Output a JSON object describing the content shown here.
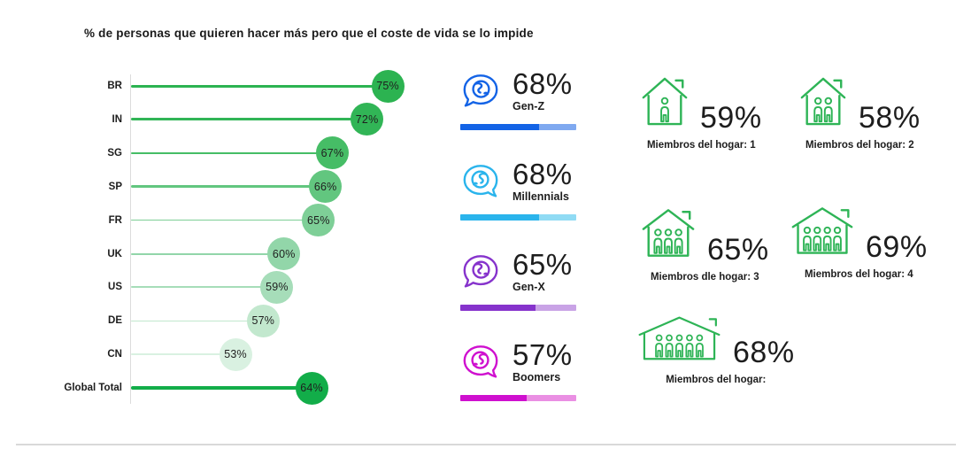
{
  "title": "% de personas que quieren hacer más pero que el coste de vida se lo impide",
  "chart_data": [
    {
      "type": "bar",
      "variant": "lollipop",
      "title": "% de personas que quieren hacer más pero que el coste de vida se lo impide",
      "categories": [
        "BR",
        "IN",
        "SG",
        "SP",
        "FR",
        "UK",
        "US",
        "DE",
        "CN",
        "Global Total"
      ],
      "values": [
        75,
        72,
        67,
        66,
        65,
        60,
        59,
        57,
        53,
        64
      ],
      "value_labels": [
        "75%",
        "72%",
        "67%",
        "66%",
        "65%",
        "60%",
        "59%",
        "57%",
        "53%",
        "64%"
      ],
      "unit": "%",
      "xlim": [
        38,
        79
      ],
      "grid": false,
      "colors": [
        "#2cb351",
        "#31b556",
        "#46bd66",
        "#62c67f",
        "#7ecf97",
        "#92d6a9",
        "#a6ddb9",
        "#c2e8ce",
        "#d9f1e1",
        "#12ad49"
      ],
      "line_widths": [
        3,
        3,
        1.5,
        2.5,
        1.5,
        2,
        2,
        1.5,
        2,
        4
      ]
    },
    {
      "type": "bar",
      "name": "generations",
      "categories": [
        "Gen-Z",
        "Millennials",
        "Gen-X",
        "Boomers"
      ],
      "values": [
        68,
        68,
        65,
        57
      ],
      "value_labels": [
        "68%",
        "68%",
        "65%",
        "57%"
      ],
      "unit": "%",
      "icon": "speech-bubble-globe",
      "colors": [
        "#1363e6",
        "#2ab4ec",
        "#8633cc",
        "#cf10cf"
      ],
      "track_colors": [
        "#7fa9f0",
        "#90dbf4",
        "#c9a3e6",
        "#ea8fe3"
      ]
    },
    {
      "type": "bar",
      "name": "household-members",
      "categories": [
        "Miembros del hogar: 1",
        "Miembros del hogar: 2",
        "Miembros dle hogar: 3",
        "Miembros del hogar: 4",
        "Miembros del hogar:"
      ],
      "persons": [
        1,
        2,
        3,
        4,
        5
      ],
      "values": [
        59,
        58,
        65,
        69,
        68
      ],
      "value_labels": [
        "59%",
        "58%",
        "65%",
        "69%",
        "68%"
      ],
      "unit": "%",
      "icon": "house-with-people",
      "icon_color": "#2eb456"
    }
  ],
  "style": {
    "axis_color": "#dcdcdc",
    "divider_color": "#d9d9d9",
    "text_color": "#1d1d1d"
  }
}
